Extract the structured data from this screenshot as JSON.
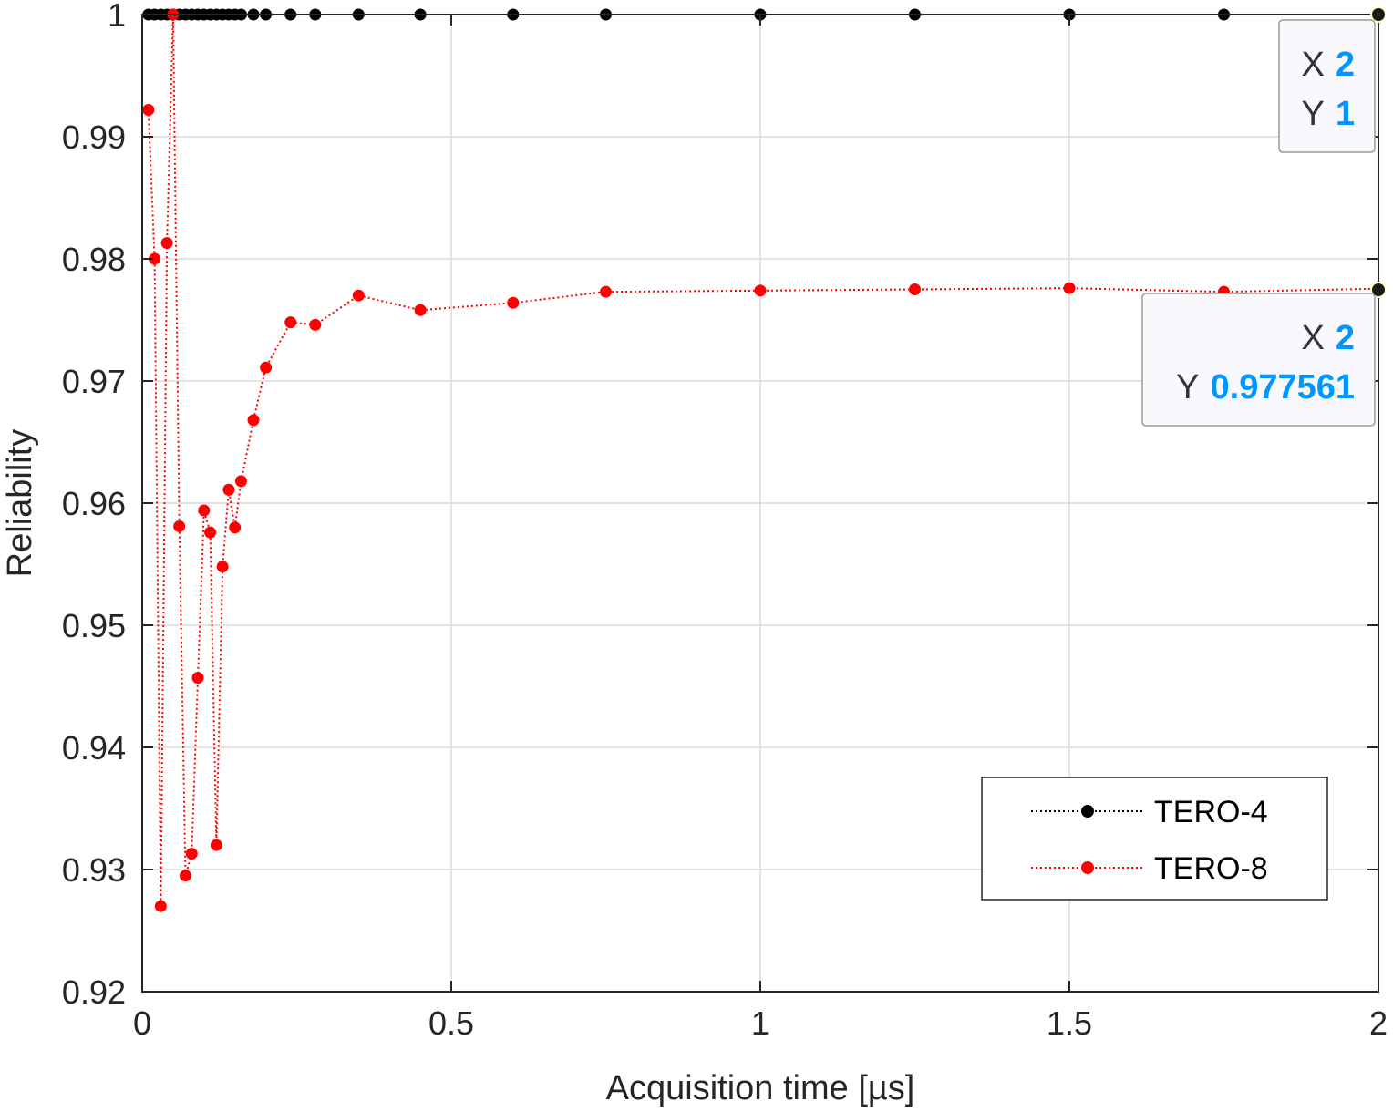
{
  "chart_data": {
    "type": "line",
    "xlabel": "Acquisition time [µs]",
    "ylabel": "Reliability",
    "xlim": [
      0,
      2
    ],
    "ylim": [
      0.92,
      1
    ],
    "xticks": [
      0,
      0.5,
      1,
      1.5,
      2
    ],
    "xtick_labels": [
      "0",
      "0.5",
      "1",
      "1.5",
      "2"
    ],
    "yticks": [
      0.92,
      0.93,
      0.94,
      0.95,
      0.96,
      0.97,
      0.98,
      0.99,
      1
    ],
    "ytick_labels": [
      "0.92",
      "0.93",
      "0.94",
      "0.95",
      "0.96",
      "0.97",
      "0.98",
      "0.99",
      "1"
    ],
    "grid": true,
    "legend_position": "bottom-right",
    "series": [
      {
        "name": "TERO-4",
        "color": "#000000",
        "line_style": "dotted",
        "marker": "filled-circle",
        "x": [
          0.01,
          0.02,
          0.03,
          0.04,
          0.05,
          0.06,
          0.07,
          0.08,
          0.09,
          0.1,
          0.11,
          0.12,
          0.13,
          0.14,
          0.15,
          0.16,
          0.18,
          0.2,
          0.24,
          0.28,
          0.35,
          0.45,
          0.6,
          0.75,
          1,
          1.25,
          1.5,
          1.75,
          2
        ],
        "y": [
          1,
          1,
          1,
          1,
          1,
          1,
          1,
          1,
          1,
          1,
          1,
          1,
          1,
          1,
          1,
          1,
          1,
          1,
          1,
          1,
          1,
          1,
          1,
          1,
          1,
          1,
          1,
          1,
          1
        ]
      },
      {
        "name": "TERO-8",
        "color": "#FF0000",
        "line_style": "dotted",
        "marker": "filled-circle",
        "x": [
          0.01,
          0.02,
          0.03,
          0.04,
          0.05,
          0.06,
          0.07,
          0.08,
          0.09,
          0.1,
          0.11,
          0.12,
          0.13,
          0.14,
          0.15,
          0.16,
          0.18,
          0.2,
          0.24,
          0.28,
          0.35,
          0.45,
          0.6,
          0.75,
          1,
          1.25,
          1.5,
          1.75,
          2
        ],
        "y": [
          0.9922,
          0.98,
          0.927,
          0.9813,
          1,
          0.9581,
          0.9295,
          0.9313,
          0.9457,
          0.9594,
          0.9576,
          0.932,
          0.9548,
          0.9611,
          0.958,
          0.9618,
          0.9668,
          0.9711,
          0.9748,
          0.9746,
          0.977,
          0.9758,
          0.9764,
          0.9773,
          0.9774,
          0.9775,
          0.9776,
          0.9773,
          0.977561
        ]
      }
    ],
    "datatips": [
      {
        "x_key": "X",
        "x_value": "2",
        "y_key": "Y",
        "y_value": "1",
        "target_series": "TERO-4"
      },
      {
        "x_key": "X",
        "x_value": "2",
        "y_key": "Y",
        "y_value": "0.977561",
        "target_series": "TERO-8"
      }
    ]
  }
}
